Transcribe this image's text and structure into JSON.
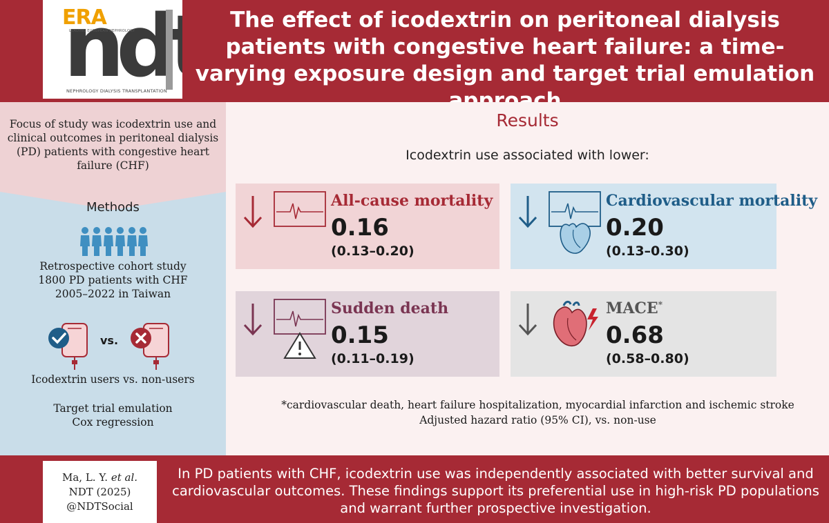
{
  "header": {
    "logo": {
      "era": "ERA",
      "era_sub": "LEADING EUROPEAN NEPHROLOGY",
      "ndt": "ndt",
      "ndt_sub": "NEPHROLOGY DIALYSIS TRANSPLANTATION"
    },
    "title": "The effect of icodextrin on peritoneal dialysis patients with congestive heart failure: a time-varying exposure design and target trial emulation approach"
  },
  "left": {
    "focus": "Focus of study was icodextrin use and clinical outcomes in peritoneal dialysis (PD) patients with congestive heart failure (CHF)",
    "methods_title": "Methods",
    "cohort": [
      "Retrospective cohort study",
      "1800 PD patients with CHF",
      "2005–2022 in Taiwan"
    ],
    "vs_label": "vs.",
    "users_label": "Icodextrin users vs. non-users",
    "analysis": [
      "Target trial emulation",
      "Cox regression"
    ]
  },
  "results": {
    "title": "Results",
    "subtitle": "Icodextrin use associated with lower:",
    "outcomes": [
      {
        "label": "All-cause mortality",
        "value": "0.16",
        "ci": "(0.13–0.20)",
        "color": "#a62a35"
      },
      {
        "label": "Cardiovascular mortality",
        "value": "0.20",
        "ci": "(0.13–0.30)",
        "color": "#1f5d88"
      },
      {
        "label": "Sudden death",
        "value": "0.15",
        "ci": "(0.11–0.19)",
        "color": "#7a3552"
      },
      {
        "label": "MACE",
        "label_sup": "*",
        "value": "0.68",
        "ci": "(0.58–0.80)",
        "color": "#555555"
      }
    ],
    "footnote": "*cardiovascular death, heart failure hospitalization, myocardial infarction and ischemic stroke",
    "footnote2": "Adjusted hazard ratio (95% CI), vs. non-use"
  },
  "footer": {
    "citation_author": "Ma, L. Y. ",
    "citation_etal": "et al.",
    "citation_journal": "NDT (2025)",
    "citation_handle": "@NDTSocial",
    "conclusion": "In PD patients with CHF, icodextrin use was independently associated with better survival and cardiovascular outcomes. These findings support its preferential use in high-risk PD populations and warrant further prospective investigation."
  },
  "colors": {
    "brand_red": "#a62a35",
    "blue": "#1f5d88",
    "purple": "#7a3552",
    "gray": "#555555"
  }
}
